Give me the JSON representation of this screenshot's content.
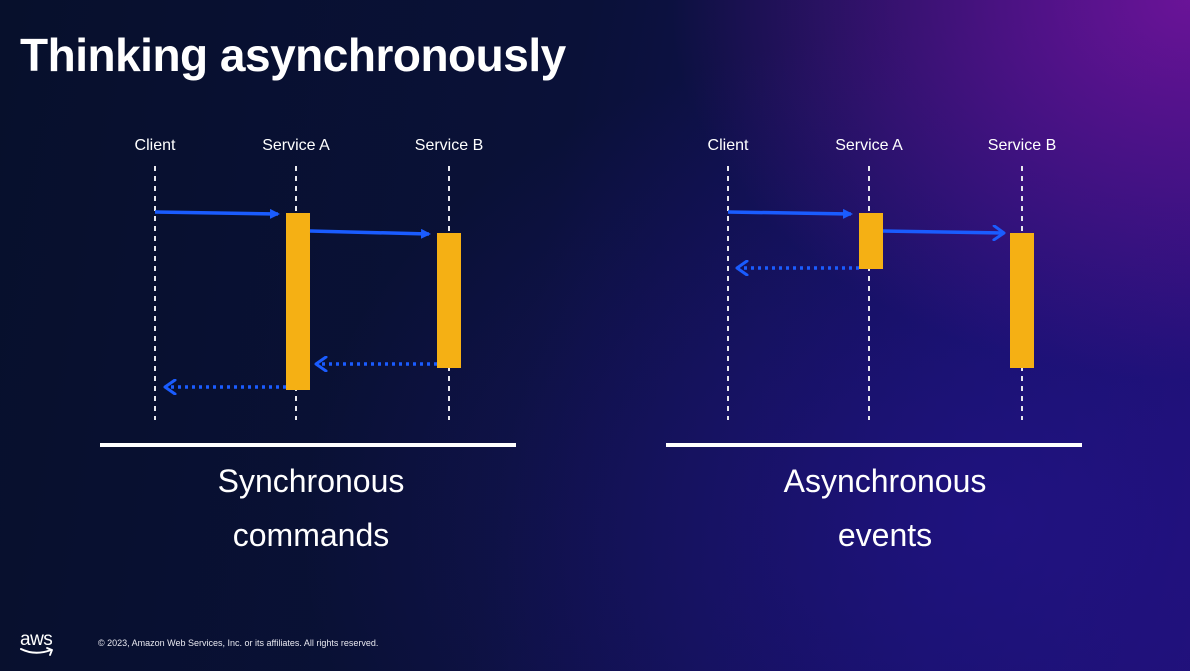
{
  "slide": {
    "title": "Thinking asynchronously",
    "copyright": "© 2023, Amazon Web Services, Inc. or its affiliates. All rights reserved.",
    "logo_text": "aws"
  },
  "diagrams": [
    {
      "id": "synchronous",
      "lanes": [
        "Client",
        "Service A",
        "Service B"
      ],
      "caption": [
        "Synchronous",
        "commands"
      ]
    },
    {
      "id": "asynchronous",
      "lanes": [
        "Client",
        "Service A",
        "Service B"
      ],
      "caption": [
        "Asynchronous",
        "events"
      ]
    }
  ],
  "colors": {
    "activation": "#f5b014",
    "arrow": "#1a5cff",
    "lifeline": "#e8e8ee",
    "divider": "#ffffff"
  }
}
